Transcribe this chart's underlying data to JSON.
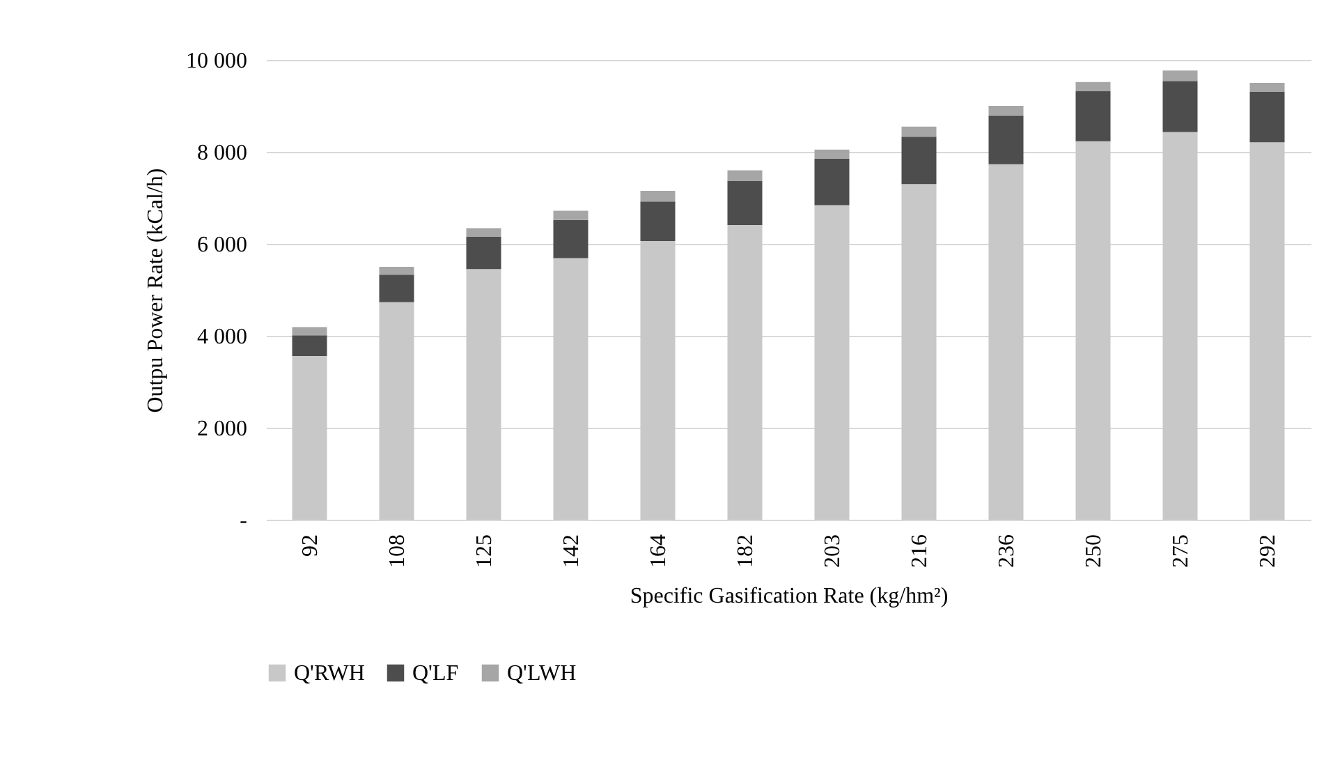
{
  "chart_data": {
    "type": "bar",
    "stacked": true,
    "xlabel": "Specific Gasification Rate (kg/hm²)",
    "ylabel": "Outpu Power Rate (kCal/h)",
    "categories": [
      "92",
      "108",
      "125",
      "142",
      "164",
      "182",
      "203",
      "216",
      "236",
      "250",
      "275",
      "292"
    ],
    "series": [
      {
        "name": "Q'RWH",
        "color": "#c8c8c8",
        "values": [
          3560,
          4730,
          5450,
          5690,
          6060,
          6410,
          6840,
          7300,
          7730,
          8230,
          8430,
          8210
        ]
      },
      {
        "name": "Q'LF",
        "color": "#4d4d4d",
        "values": [
          450,
          600,
          710,
          830,
          860,
          960,
          1010,
          1030,
          1060,
          1090,
          1110,
          1100
        ]
      },
      {
        "name": "Q'LWH",
        "color": "#a6a6a6",
        "values": [
          180,
          170,
          180,
          200,
          230,
          230,
          200,
          220,
          210,
          200,
          230,
          190
        ]
      }
    ],
    "ylim": [
      0,
      10000
    ],
    "yticks": [
      {
        "value": 0,
        "label": "-"
      },
      {
        "value": 2000,
        "label": "2 000"
      },
      {
        "value": 4000,
        "label": "4 000"
      },
      {
        "value": 6000,
        "label": "6 000"
      },
      {
        "value": 8000,
        "label": "8 000"
      },
      {
        "value": 10000,
        "label": "10 000"
      }
    ],
    "grid": "y",
    "legend": "bottom"
  }
}
